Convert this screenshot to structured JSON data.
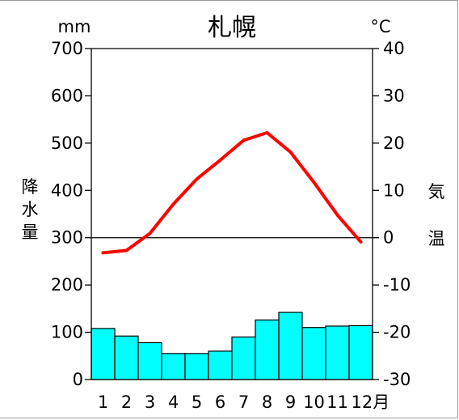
{
  "chart_data": {
    "type": "bar+line",
    "title": "札幌",
    "left_unit": "mm",
    "right_unit": "°C",
    "left_label": [
      "降",
      "水",
      "量"
    ],
    "right_label": [
      "気",
      "温"
    ],
    "categories": [
      "1",
      "2",
      "3",
      "4",
      "5",
      "6",
      "7",
      "8",
      "9",
      "10",
      "11",
      "12月"
    ],
    "precipitation": {
      "values": [
        108,
        92,
        78,
        55,
        55,
        60,
        90,
        126,
        142,
        110,
        113,
        114
      ],
      "color": "#00ffff",
      "ylim": [
        0,
        700
      ],
      "ticks": [
        "700",
        "600",
        "500",
        "400",
        "300",
        "200",
        "100",
        "0"
      ]
    },
    "temperature": {
      "values": [
        -3.2,
        -2.7,
        0.9,
        7.1,
        12.4,
        16.4,
        20.6,
        22.2,
        18.1,
        11.7,
        4.8,
        -0.9
      ],
      "color": "#ff0000",
      "ylim": [
        -30,
        40
      ],
      "ticks": [
        "40",
        "30",
        "20",
        "10",
        "0",
        "-10",
        "-20",
        "-30"
      ]
    },
    "grid": false,
    "reference_line": "0°C"
  }
}
